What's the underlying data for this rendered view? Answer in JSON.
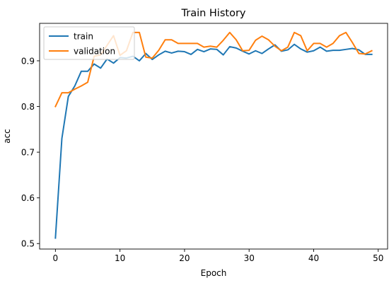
{
  "chart_data": {
    "type": "line",
    "title": "Train History",
    "xlabel": "Epoch",
    "ylabel": "acc",
    "xlim": [
      -2.45,
      51.45
    ],
    "ylim": [
      0.488,
      0.982
    ],
    "xticks": [
      0,
      10,
      20,
      30,
      40,
      50
    ],
    "yticks": [
      0.5,
      0.6,
      0.7,
      0.8,
      0.9
    ],
    "ytick_labels": [
      "0.5",
      "0.6",
      "0.7",
      "0.8",
      "0.9"
    ],
    "legend_position": "upper-left",
    "grid": false,
    "x": [
      0,
      1,
      2,
      3,
      4,
      5,
      6,
      7,
      8,
      9,
      10,
      11,
      12,
      13,
      14,
      15,
      16,
      17,
      18,
      19,
      20,
      21,
      22,
      23,
      24,
      25,
      26,
      27,
      28,
      29,
      30,
      31,
      32,
      33,
      34,
      35,
      36,
      37,
      38,
      39,
      40,
      41,
      42,
      43,
      44,
      45,
      46,
      47,
      48,
      49
    ],
    "series": [
      {
        "name": "train",
        "color": "#1f77b4",
        "values": [
          0.512,
          0.73,
          0.822,
          0.845,
          0.877,
          0.877,
          0.893,
          0.884,
          0.904,
          0.895,
          0.907,
          0.906,
          0.91,
          0.9,
          0.916,
          0.903,
          0.913,
          0.921,
          0.917,
          0.921,
          0.92,
          0.914,
          0.925,
          0.92,
          0.926,
          0.925,
          0.913,
          0.931,
          0.928,
          0.921,
          0.915,
          0.922,
          0.916,
          0.926,
          0.935,
          0.921,
          0.924,
          0.936,
          0.926,
          0.919,
          0.922,
          0.93,
          0.921,
          0.923,
          0.923,
          0.925,
          0.927,
          0.924,
          0.914,
          0.914
        ]
      },
      {
        "name": "validation",
        "color": "#ff7f0e",
        "values": [
          0.8,
          0.83,
          0.83,
          0.838,
          0.845,
          0.853,
          0.91,
          0.913,
          0.934,
          0.955,
          0.912,
          0.922,
          0.962,
          0.962,
          0.908,
          0.906,
          0.923,
          0.946,
          0.946,
          0.938,
          0.938,
          0.938,
          0.938,
          0.93,
          0.932,
          0.93,
          0.945,
          0.962,
          0.946,
          0.922,
          0.923,
          0.945,
          0.954,
          0.946,
          0.932,
          0.922,
          0.93,
          0.962,
          0.955,
          0.922,
          0.938,
          0.938,
          0.93,
          0.938,
          0.955,
          0.962,
          0.94,
          0.916,
          0.915,
          0.922
        ]
      }
    ]
  }
}
